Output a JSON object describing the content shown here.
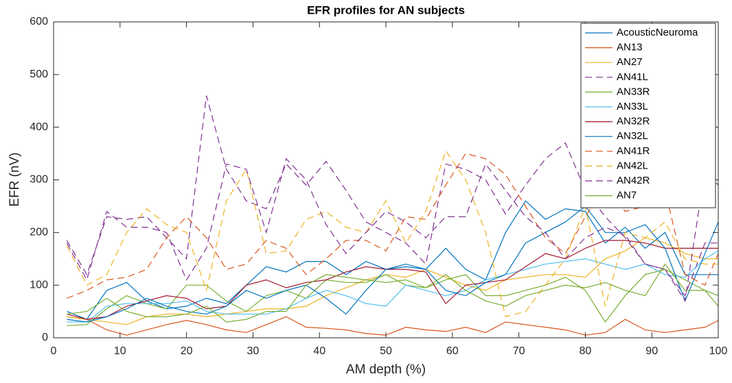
{
  "chart_data": {
    "type": "line",
    "title": "EFR profiles for AN subjects",
    "x_label": "AM depth (%)",
    "y_label": "EFR (nV)",
    "xlim": [
      0,
      100
    ],
    "xticks": [
      0,
      10,
      20,
      30,
      40,
      50,
      60,
      70,
      80,
      90,
      100
    ],
    "ylim": [
      0,
      600
    ],
    "yticks": [
      0,
      100,
      200,
      300,
      400,
      500,
      600
    ],
    "legend": "top-right",
    "x": [
      2,
      5,
      8,
      11,
      14,
      17,
      20,
      23,
      26,
      29,
      32,
      35,
      38,
      41,
      44,
      47,
      50,
      53,
      56,
      59,
      62,
      65,
      68,
      71,
      74,
      77,
      80,
      83,
      86,
      89,
      92,
      95,
      98,
      100
    ],
    "series": [
      {
        "name": "AcousticNeuroma",
        "color": "#0072bd",
        "style": "solid",
        "values": [
          50,
          35,
          90,
          105,
          70,
          55,
          60,
          75,
          65,
          100,
          135,
          125,
          145,
          145,
          120,
          145,
          130,
          135,
          130,
          170,
          130,
          110,
          200,
          260,
          225,
          245,
          240,
          180,
          210,
          170,
          200,
          120,
          120,
          120
        ]
      },
      {
        "name": "AN13",
        "color": "#d95319",
        "style": "solid",
        "values": [
          40,
          35,
          15,
          5,
          15,
          25,
          33,
          25,
          15,
          10,
          25,
          40,
          20,
          18,
          15,
          8,
          5,
          20,
          15,
          12,
          20,
          10,
          30,
          25,
          20,
          15,
          5,
          10,
          35,
          15,
          10,
          15,
          20,
          33
        ]
      },
      {
        "name": "AN27",
        "color": "#edb120",
        "style": "solid",
        "values": [
          40,
          35,
          30,
          25,
          40,
          45,
          45,
          40,
          45,
          50,
          55,
          55,
          60,
          80,
          95,
          110,
          120,
          115,
          130,
          115,
          100,
          90,
          110,
          115,
          120,
          120,
          115,
          150,
          165,
          190,
          180,
          160,
          150,
          150
        ]
      },
      {
        "name": "AN41L",
        "color": "#7e2f8e",
        "style": "dashed",
        "values": [
          185,
          120,
          230,
          225,
          230,
          190,
          150,
          460,
          320,
          260,
          245,
          330,
          290,
          335,
          280,
          220,
          200,
          180,
          140,
          330,
          320,
          300,
          235,
          290,
          340,
          370,
          280,
          230,
          190,
          140,
          130,
          80,
          180,
          180
        ]
      },
      {
        "name": "AN33R",
        "color": "#77ac30",
        "style": "solid",
        "values": [
          23,
          25,
          55,
          80,
          65,
          55,
          100,
          100,
          70,
          50,
          80,
          90,
          75,
          110,
          105,
          105,
          120,
          100,
          95,
          110,
          120,
          80,
          80,
          90,
          100,
          115,
          90,
          30,
          80,
          120,
          130,
          110,
          90,
          80
        ]
      },
      {
        "name": "AN33L",
        "color": "#4dbeee",
        "style": "solid",
        "values": [
          30,
          30,
          60,
          65,
          65,
          65,
          70,
          50,
          45,
          45,
          45,
          55,
          75,
          90,
          80,
          65,
          60,
          100,
          90,
          80,
          90,
          110,
          120,
          130,
          140,
          145,
          150,
          140,
          130,
          140,
          120,
          115,
          150,
          165
        ]
      },
      {
        "name": "AN32R",
        "color": "#a2142f",
        "style": "solid",
        "values": [
          45,
          35,
          40,
          60,
          70,
          80,
          75,
          55,
          60,
          100,
          110,
          95,
          105,
          110,
          125,
          135,
          130,
          130,
          125,
          65,
          100,
          105,
          110,
          135,
          160,
          150,
          170,
          185,
          185,
          180,
          170,
          170,
          170,
          170
        ]
      },
      {
        "name": "AN32L",
        "color": "#0072bd",
        "style": "solid",
        "values": [
          35,
          30,
          40,
          55,
          75,
          60,
          50,
          45,
          60,
          90,
          75,
          90,
          100,
          75,
          45,
          90,
          130,
          140,
          130,
          90,
          80,
          105,
          120,
          180,
          200,
          220,
          250,
          200,
          200,
          215,
          170,
          70,
          160,
          220
        ]
      },
      {
        "name": "AN41R",
        "color": "#d95319",
        "style": "dashed",
        "values": [
          75,
          90,
          110,
          115,
          130,
          190,
          230,
          190,
          130,
          140,
          185,
          170,
          120,
          150,
          185,
          185,
          165,
          230,
          225,
          290,
          350,
          340,
          310,
          250,
          190,
          160,
          230,
          290,
          240,
          250,
          280,
          120,
          100,
          160
        ]
      },
      {
        "name": "AN42L",
        "color": "#edb120",
        "style": "dashed",
        "values": [
          175,
          100,
          120,
          200,
          245,
          215,
          200,
          90,
          260,
          320,
          160,
          165,
          225,
          240,
          210,
          200,
          260,
          180,
          240,
          355,
          300,
          200,
          40,
          50,
          100,
          150,
          250,
          60,
          200,
          190,
          220,
          150,
          140,
          140
        ]
      },
      {
        "name": "AN42R",
        "color": "#7e2f8e",
        "style": "dashed",
        "values": [
          180,
          110,
          240,
          210,
          210,
          200,
          110,
          170,
          330,
          320,
          200,
          340,
          300,
          215,
          160,
          200,
          240,
          220,
          190,
          230,
          230,
          330,
          280,
          230,
          200,
          150,
          190,
          210,
          195,
          140,
          130,
          70,
          320,
          290
        ]
      },
      {
        "name": "AN7",
        "color": "#77ac30",
        "style": "solid",
        "values": [
          45,
          50,
          75,
          50,
          40,
          40,
          45,
          60,
          30,
          35,
          50,
          50,
          100,
          120,
          115,
          110,
          105,
          110,
          95,
          120,
          90,
          70,
          60,
          80,
          90,
          100,
          95,
          105,
          90,
          80,
          140,
          90,
          90,
          60
        ]
      }
    ]
  }
}
